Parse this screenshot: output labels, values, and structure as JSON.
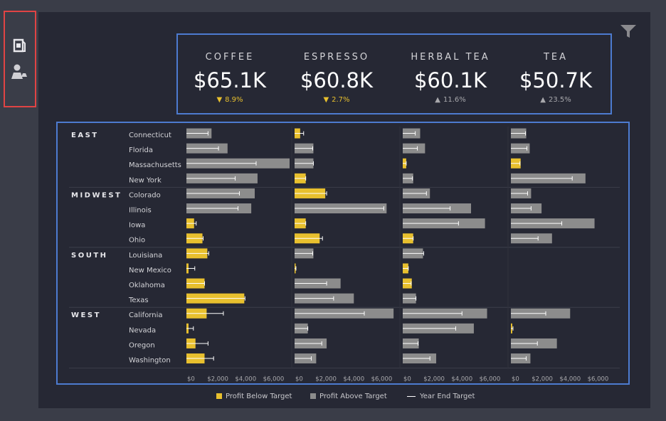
{
  "kpis": [
    {
      "name": "COFFEE",
      "value": "$65.1K",
      "change": "8.9%",
      "direction": "down"
    },
    {
      "name": "ESPRESSO",
      "value": "$60.8K",
      "change": "2.7%",
      "direction": "down"
    },
    {
      "name": "HERBAL TEA",
      "value": "$60.1K",
      "change": "11.6%",
      "direction": "up"
    },
    {
      "name": "TEA",
      "value": "$50.7K",
      "change": "23.5%",
      "direction": "up"
    }
  ],
  "colors": {
    "below": "#e8c02e",
    "above": "#8c8c8c",
    "target": "#ffffff",
    "panel": "#262834",
    "box": "#4d7bd0",
    "sidebar_box": "#e04444"
  },
  "icons": {
    "sidebar": [
      "product-bag-icon",
      "map-pin-person-icon"
    ],
    "filter": "filter-funnel-icon"
  },
  "legend": {
    "below": "Profit Below Target",
    "above": "Profit Above Target",
    "target": "Year End Target"
  },
  "chart_data": {
    "type": "bar",
    "orientation": "horizontal",
    "panel_order": [
      "Coffee",
      "Espresso",
      "Herbal Tea",
      "Tea"
    ],
    "x_ticks": [
      "$0",
      "$2,000",
      "$4,000",
      "$6,000"
    ],
    "x_tick_values": [
      0,
      2000,
      4000,
      6000
    ],
    "xlim": [
      0,
      7400
    ],
    "regions": [
      {
        "name": "EAST",
        "states": [
          "Connecticut",
          "Florida",
          "Massachusetts",
          "New York"
        ]
      },
      {
        "name": "MIDWEST",
        "states": [
          "Colorado",
          "Illinois",
          "Iowa",
          "Ohio"
        ]
      },
      {
        "name": "SOUTH",
        "states": [
          "Louisiana",
          "New Mexico",
          "Oklahoma",
          "Texas"
        ]
      },
      {
        "name": "WEST",
        "states": [
          "California",
          "Nevada",
          "Oregon",
          "Washington"
        ]
      }
    ],
    "series_profit": [
      [
        1800,
        2950,
        7400,
        5100,
        4900,
        4650,
        550,
        1150,
        1500,
        150,
        1300,
        4150,
        1450,
        150,
        650,
        1300
      ],
      [
        400,
        1350,
        1350,
        800,
        2200,
        6600,
        800,
        1800,
        1350,
        50,
        3300,
        4250,
        7100,
        950,
        2300,
        1550
      ],
      [
        1250,
        1600,
        250,
        750,
        1950,
        4900,
        5900,
        750,
        1450,
        400,
        650,
        950,
        6050,
        5100,
        1150,
        2400
      ],
      [
        1100,
        1350,
        700,
        5350,
        1450,
        2200,
        6000,
        2950,
        0,
        0,
        0,
        0,
        4250,
        100,
        3300,
        1400
      ]
    ],
    "series_target": [
      [
        1550,
        2300,
        5000,
        3500,
        3800,
        3700,
        700,
        1200,
        1600,
        600,
        1300,
        4200,
        2650,
        500,
        1550,
        1950
      ],
      [
        650,
        1300,
        1350,
        800,
        2300,
        6400,
        800,
        2000,
        1300,
        100,
        2300,
        2800,
        5000,
        950,
        1950,
        1200
      ],
      [
        900,
        1050,
        250,
        700,
        1700,
        3400,
        4000,
        750,
        1500,
        400,
        600,
        950,
        4250,
        3800,
        1100,
        1950
      ],
      [
        1050,
        1150,
        650,
        4400,
        1200,
        1450,
        3650,
        1950,
        0,
        0,
        0,
        0,
        2500,
        150,
        1900,
        1100
      ]
    ],
    "status": [
      [
        "above",
        "above",
        "above",
        "above",
        "above",
        "above",
        "below",
        "below",
        "below",
        "below",
        "below",
        "below",
        "below",
        "below",
        "below",
        "below"
      ],
      [
        "below",
        "above",
        "above",
        "below",
        "below",
        "above",
        "below",
        "below",
        "above",
        "below",
        "above",
        "above",
        "above",
        "above",
        "above",
        "above"
      ],
      [
        "above",
        "above",
        "below",
        "above",
        "above",
        "above",
        "above",
        "below",
        "above",
        "below",
        "below",
        "above",
        "above",
        "above",
        "above",
        "above"
      ],
      [
        "above",
        "above",
        "below",
        "above",
        "above",
        "above",
        "above",
        "above",
        "none",
        "none",
        "none",
        "none",
        "above",
        "below",
        "above",
        "above"
      ]
    ]
  }
}
